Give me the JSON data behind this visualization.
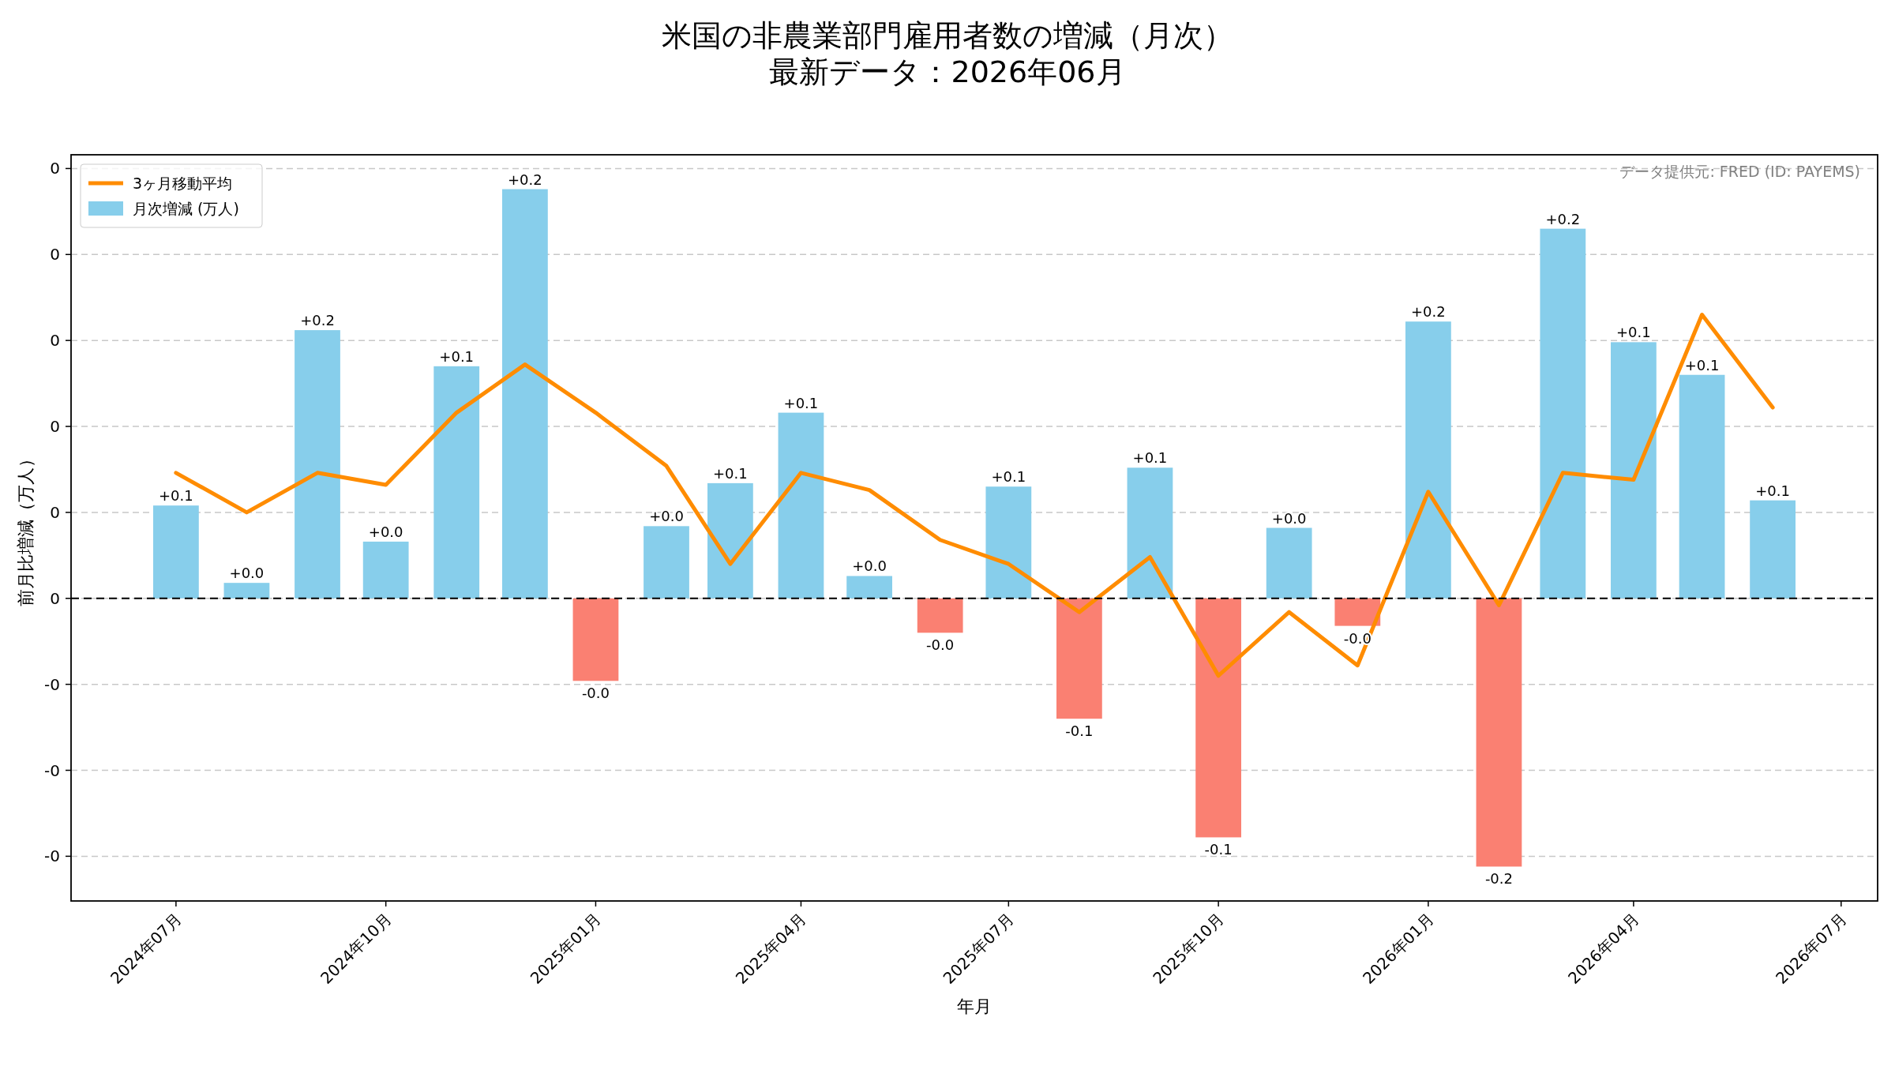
{
  "chart_data": {
    "type": "bar",
    "title": "米国の非農業部門雇用者数の増減（月次）",
    "subtitle": "最新データ：2026年06月",
    "xlabel": "年月",
    "ylabel": "前月比増減（万人）",
    "x": [
      "2024-07",
      "2024-08",
      "2024-09",
      "2024-10",
      "2024-11",
      "2024-12",
      "2025-01",
      "2025-02",
      "2025-03",
      "2025-04",
      "2025-05",
      "2025-06",
      "2025-07",
      "2025-08",
      "2025-09",
      "2025-10",
      "2025-11",
      "2025-12",
      "2026-01",
      "2026-02",
      "2026-03",
      "2026-04",
      "2026-05",
      "2026-06"
    ],
    "series": [
      {
        "type": "line",
        "name": "3ヶ月移動平均",
        "color": "#ff8c00",
        "values": [
          0.073,
          0.05,
          0.073,
          0.066,
          0.108,
          0.136,
          0.108,
          0.077,
          0.02,
          0.073,
          0.063,
          0.034,
          0.02,
          -0.008,
          0.024,
          -0.045,
          -0.008,
          -0.039,
          0.062,
          -0.004,
          0.073,
          0.069,
          0.165,
          0.111
        ]
      },
      {
        "name": "月次増減 (万人)",
        "colors": [
          "#87ceeb",
          "#87ceeb",
          "#87ceeb",
          "#87ceeb",
          "#87ceeb",
          "#87ceeb",
          "#fa8072",
          "#87ceeb",
          "#87ceeb",
          "#87ceeb",
          "#87ceeb",
          "#fa8072",
          "#87ceeb",
          "#fa8072",
          "#87ceeb",
          "#fa8072",
          "#87ceeb",
          "#fa8072",
          "#87ceeb",
          "#fa8072",
          "#87ceeb",
          "#87ceeb",
          "#87ceeb",
          "#87ceeb"
        ],
        "values": [
          0.054,
          0.009,
          0.156,
          0.033,
          0.135,
          0.238,
          -0.048,
          0.042,
          0.067,
          0.108,
          0.013,
          -0.02,
          0.065,
          -0.07,
          0.076,
          -0.139,
          0.041,
          -0.016,
          0.161,
          -0.156,
          0.215,
          0.149,
          0.13,
          0.057
        ],
        "value_labels": [
          "+0.1",
          "+0.0",
          "+0.2",
          "+0.0",
          "+0.1",
          "+0.2",
          "-0.0",
          "+0.0",
          "+0.1",
          "+0.1",
          "+0.0",
          "-0.0",
          "+0.1",
          "-0.1",
          "+0.1",
          "-0.1",
          "+0.0",
          "-0.0",
          "+0.2",
          "-0.2",
          "+0.2",
          "+0.1",
          "+0.1",
          "+0.1"
        ]
      }
    ],
    "xlim": [
      "2024-05-16",
      "2026-07-17"
    ],
    "xticks": [
      {
        "value": "2024-07",
        "label": "2024年07月"
      },
      {
        "value": "2024-10",
        "label": "2024年10月"
      },
      {
        "value": "2025-01",
        "label": "2025年01月"
      },
      {
        "value": "2025-04",
        "label": "2025年04月"
      },
      {
        "value": "2025-07",
        "label": "2025年07月"
      },
      {
        "value": "2025-10",
        "label": "2025年10月"
      },
      {
        "value": "2026-01",
        "label": "2026年01月"
      },
      {
        "value": "2026-04",
        "label": "2026年04月"
      },
      {
        "value": "2026-07",
        "label": "2026年07月"
      }
    ],
    "ylim": [
      -0.176,
      0.258
    ],
    "yticks": [
      {
        "value": -0.15,
        "label": "-0"
      },
      {
        "value": -0.1,
        "label": "-0"
      },
      {
        "value": -0.05,
        "label": "-0"
      },
      {
        "value": 0,
        "label": "0"
      },
      {
        "value": 0.05,
        "label": "0"
      },
      {
        "value": 0.1,
        "label": "0"
      },
      {
        "value": 0.15,
        "label": "0"
      },
      {
        "value": 0.2,
        "label": "0"
      },
      {
        "value": 0.25,
        "label": "0"
      }
    ],
    "ref_lines": [
      {
        "axis": "y",
        "value": 0,
        "color": "#000000",
        "line_style": "dashed"
      }
    ],
    "grid": "y",
    "legend": "top left",
    "annotations": [
      "データ提供元: FRED (ID: PAYEMS)"
    ]
  }
}
